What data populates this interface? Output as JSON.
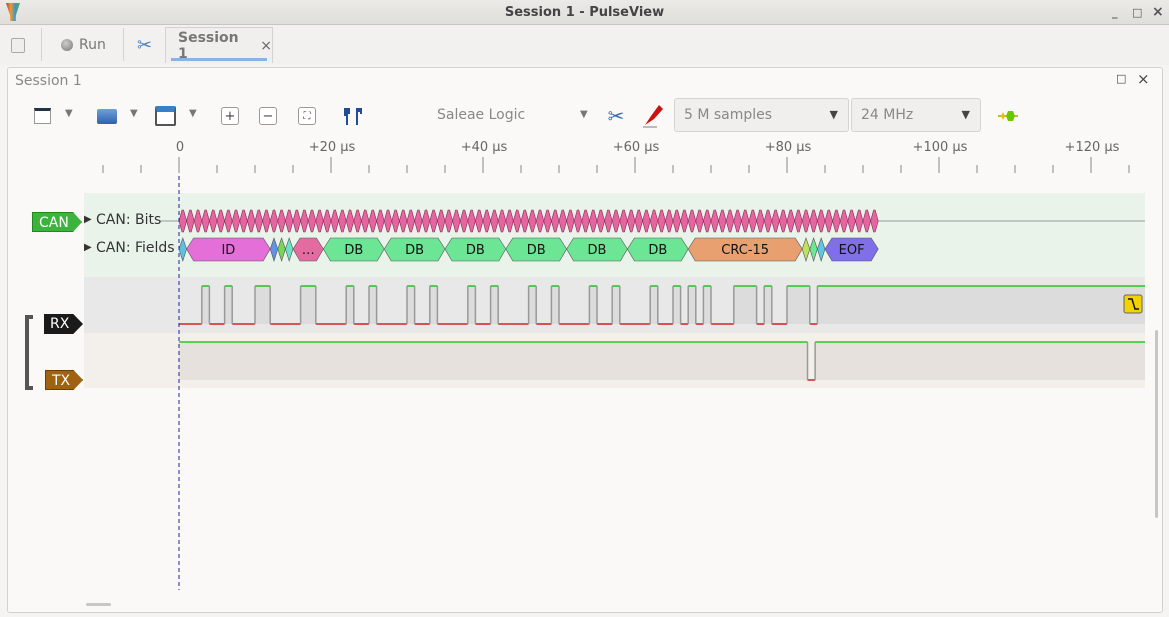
{
  "window": {
    "title": "Session 1 - PulseView",
    "controls": [
      "_",
      "□",
      "×"
    ]
  },
  "tabbar": {
    "run_label": "Run",
    "session_tab": "Session 1",
    "close": "×"
  },
  "session": {
    "title": "Session 1",
    "controls": [
      "□",
      "×"
    ]
  },
  "toolbar": {
    "device": "Saleae Logic",
    "samples": "5 M samples",
    "samplerate": "24 MHz",
    "icons": [
      "new-session-icon",
      "open-icon",
      "save-icon",
      "zoom-in-icon",
      "zoom-out-icon",
      "zoom-fit-icon",
      "cursors-icon",
      "configure-device-icon",
      "probe-icon",
      "trigger-icon"
    ]
  },
  "ruler": {
    "labels": [
      "0",
      "+20 µs",
      "+40 µs",
      "+60 µs",
      "+80 µs",
      "+100 µs",
      "+120 µs"
    ],
    "values_us": [
      0,
      20,
      40,
      60,
      80,
      100,
      120
    ]
  },
  "channels": {
    "can": {
      "label": "CAN",
      "color": "#3cb33c",
      "rows": {
        "bits": "CAN: Bits",
        "fields": "CAN: Fields"
      }
    },
    "rx": {
      "label": "RX",
      "color": "#1a1a1a"
    },
    "tx": {
      "label": "TX",
      "color": "#a0620f"
    }
  },
  "decoder": {
    "bits": {
      "start_us": 0,
      "count": 92,
      "color": "#e565a0"
    },
    "fields": [
      {
        "label": "",
        "start": 0,
        "end": 1,
        "color": "#5ec1e0"
      },
      {
        "label": "ID",
        "start": 1,
        "end": 12,
        "color": "#e46fd9"
      },
      {
        "label": "",
        "start": 12,
        "end": 13,
        "color": "#6391e8"
      },
      {
        "label": "",
        "start": 13,
        "end": 14,
        "color": "#79d65b"
      },
      {
        "label": "",
        "start": 14,
        "end": 15,
        "color": "#6ce0c8"
      },
      {
        "label": "…",
        "start": 15,
        "end": 19,
        "color": "#e46ba0"
      },
      {
        "label": "DB",
        "start": 19,
        "end": 27,
        "color": "#6ce695"
      },
      {
        "label": "DB",
        "start": 27,
        "end": 35,
        "color": "#6ce695"
      },
      {
        "label": "DB",
        "start": 35,
        "end": 43,
        "color": "#6ce695"
      },
      {
        "label": "DB",
        "start": 43,
        "end": 51,
        "color": "#6ce695"
      },
      {
        "label": "DB",
        "start": 51,
        "end": 59,
        "color": "#6ce695"
      },
      {
        "label": "DB",
        "start": 59,
        "end": 67,
        "color": "#6ce695"
      },
      {
        "label": "CRC-15",
        "start": 67,
        "end": 82,
        "color": "#e8a070"
      },
      {
        "label": "",
        "start": 82,
        "end": 83,
        "color": "#c0e060"
      },
      {
        "label": "",
        "start": 83,
        "end": 84,
        "color": "#6ce695"
      },
      {
        "label": "",
        "start": 84,
        "end": 85,
        "color": "#5ec8e0"
      },
      {
        "label": "EOF",
        "start": 85,
        "end": 92,
        "color": "#8070e8"
      }
    ]
  },
  "signals": {
    "rx_initial": 0,
    "rx_high_intervals_us": [
      [
        3,
        4
      ],
      [
        6,
        7
      ],
      [
        10,
        12
      ],
      [
        16,
        18
      ],
      [
        22,
        23
      ],
      [
        25,
        26
      ],
      [
        30,
        31
      ],
      [
        33,
        34
      ],
      [
        38,
        39
      ],
      [
        41,
        42
      ],
      [
        46,
        47
      ],
      [
        49,
        50
      ],
      [
        54,
        55
      ],
      [
        57,
        58
      ],
      [
        62,
        63
      ],
      [
        65,
        66
      ],
      [
        67,
        68
      ],
      [
        69,
        70
      ],
      [
        73,
        76
      ],
      [
        77,
        78
      ],
      [
        80,
        83
      ],
      [
        84,
        130
      ]
    ],
    "tx_initial": 1,
    "tx_low_intervals_us": [
      [
        82.7,
        83.7
      ]
    ],
    "trigger_icon": "falling-edge-trigger-icon"
  }
}
